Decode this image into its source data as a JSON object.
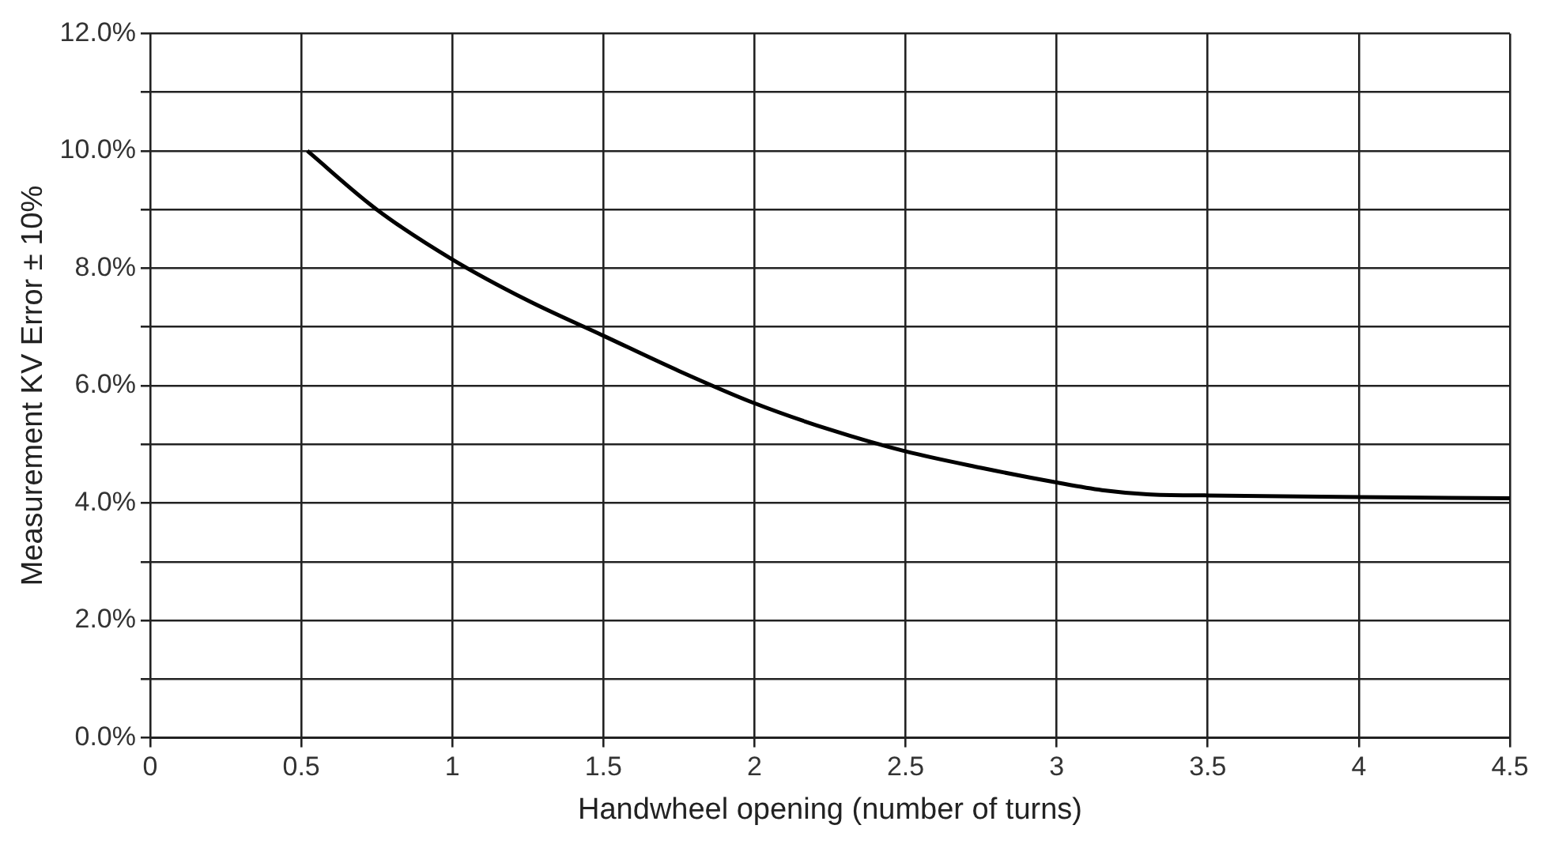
{
  "chart_data": {
    "type": "line",
    "xlabel": "Handwheel opening (number of turns)",
    "ylabel": "Measurement KV Error ± 10%",
    "x": [
      0.52,
      0.75,
      1,
      1.25,
      1.5,
      1.75,
      2,
      2.25,
      2.5,
      2.75,
      3,
      3.15,
      3.3,
      3.5,
      4,
      4.5
    ],
    "series": [
      {
        "color": "#000000",
        "values": [
          10.0,
          9.0,
          8.15,
          7.45,
          6.85,
          6.25,
          5.7,
          5.25,
          4.88,
          4.6,
          4.35,
          4.22,
          4.15,
          4.13,
          4.1,
          4.08
        ]
      }
    ],
    "xlim": [
      0,
      4.5
    ],
    "xticks": [
      0,
      0.5,
      1,
      1.5,
      2,
      2.5,
      3,
      3.5,
      4,
      4.5
    ],
    "ylim": [
      0,
      12
    ],
    "yticks": [
      {
        "value": 0,
        "label": "0.0%"
      },
      {
        "value": 1,
        "label": null
      },
      {
        "value": 2,
        "label": "2.0%"
      },
      {
        "value": 3,
        "label": null
      },
      {
        "value": 4,
        "label": "4.0%"
      },
      {
        "value": 5,
        "label": null
      },
      {
        "value": 6,
        "label": "6.0%"
      },
      {
        "value": 7,
        "label": null
      },
      {
        "value": 8,
        "label": "8.0%"
      },
      {
        "value": 9,
        "label": null
      },
      {
        "value": 10,
        "label": "10.0%"
      },
      {
        "value": 11,
        "label": null
      },
      {
        "value": 12,
        "label": "12.0%"
      }
    ],
    "grid": true,
    "legend": false,
    "marker": "none",
    "line_style": "solid"
  }
}
